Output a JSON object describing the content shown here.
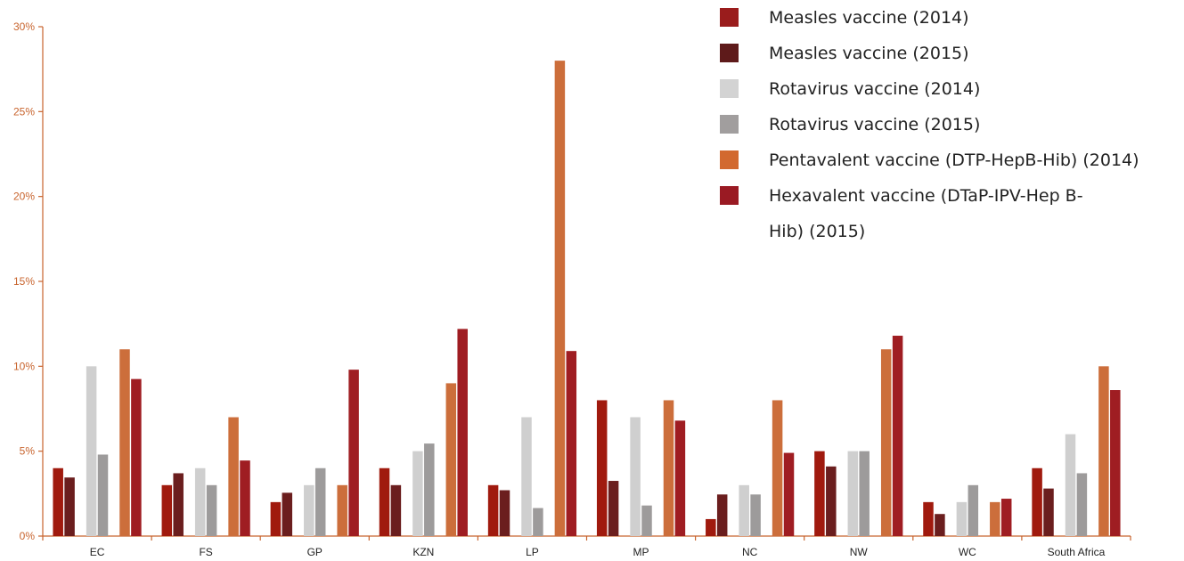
{
  "chart_data": {
    "type": "bar",
    "title": "",
    "xlabel": "",
    "ylabel": "",
    "ylim": [
      0,
      30
    ],
    "yticks": [
      "0%",
      "5%",
      "10%",
      "15%",
      "20%",
      "25%",
      "30%"
    ],
    "ytick_values": [
      0,
      5,
      10,
      15,
      20,
      25,
      30
    ],
    "categories": [
      "EC",
      "FS",
      "GP",
      "KZN",
      "LP",
      "MP",
      "NC",
      "NW",
      "WC",
      "South Africa"
    ],
    "legend_position": "top-right",
    "grid": false,
    "axis_color": "#c8642e",
    "series": [
      {
        "name": "Measles vaccine (2014)",
        "color": "#a01a0e",
        "values": [
          4,
          3,
          2,
          4,
          3,
          8,
          1,
          5,
          2,
          4
        ]
      },
      {
        "name": "Measles vaccine (2015)",
        "color": "#6b1e1e",
        "values": [
          3.45,
          3.7,
          2.55,
          3,
          2.7,
          3.25,
          2.45,
          4.1,
          1.3,
          2.8
        ]
      },
      {
        "name": "Rotavirus vaccine (2014)",
        "color": "#cfcfcf",
        "values": [
          10,
          4,
          3,
          5,
          7,
          7,
          3,
          5,
          2,
          6
        ]
      },
      {
        "name": "Rotavirus vaccine (2015)",
        "color": "#9d9b9b",
        "values": [
          4.8,
          3,
          4,
          5.45,
          1.65,
          1.8,
          2.45,
          5,
          3,
          3.7
        ]
      },
      {
        "name": "Pentavalent vaccine (DTP-HepB-Hib) (2014)",
        "color": "#cc6e3b",
        "values": [
          11,
          7,
          3,
          9,
          28,
          8,
          8,
          11,
          2,
          10
        ]
      },
      {
        "name": "Hexavalent vaccine (DTaP-IPV-Hep B-Hib) (2015)",
        "color": "#9f1d22",
        "values": [
          9.25,
          4.45,
          9.8,
          12.2,
          10.9,
          6.8,
          4.9,
          11.8,
          2.2,
          8.6
        ]
      }
    ]
  },
  "legend": {
    "items": [
      {
        "label": "Measles vaccine (2014)",
        "color": "#9a1c1c"
      },
      {
        "label": "Measles vaccine (2015)",
        "color": "#5e1a1a"
      },
      {
        "label": "Rotavirus vaccine (2014)",
        "color": "#d3d3d3"
      },
      {
        "label": "Rotavirus vaccine (2015)",
        "color": "#a19e9e"
      },
      {
        "label": "Pentavalent vaccine (DTP-HepB-Hib) (2014)",
        "color": "#d2692f"
      },
      {
        "label": "Hexavalent vaccine (DTaP-IPV-Hep B-Hib) (2015)",
        "color": "#9a1a23"
      }
    ]
  }
}
